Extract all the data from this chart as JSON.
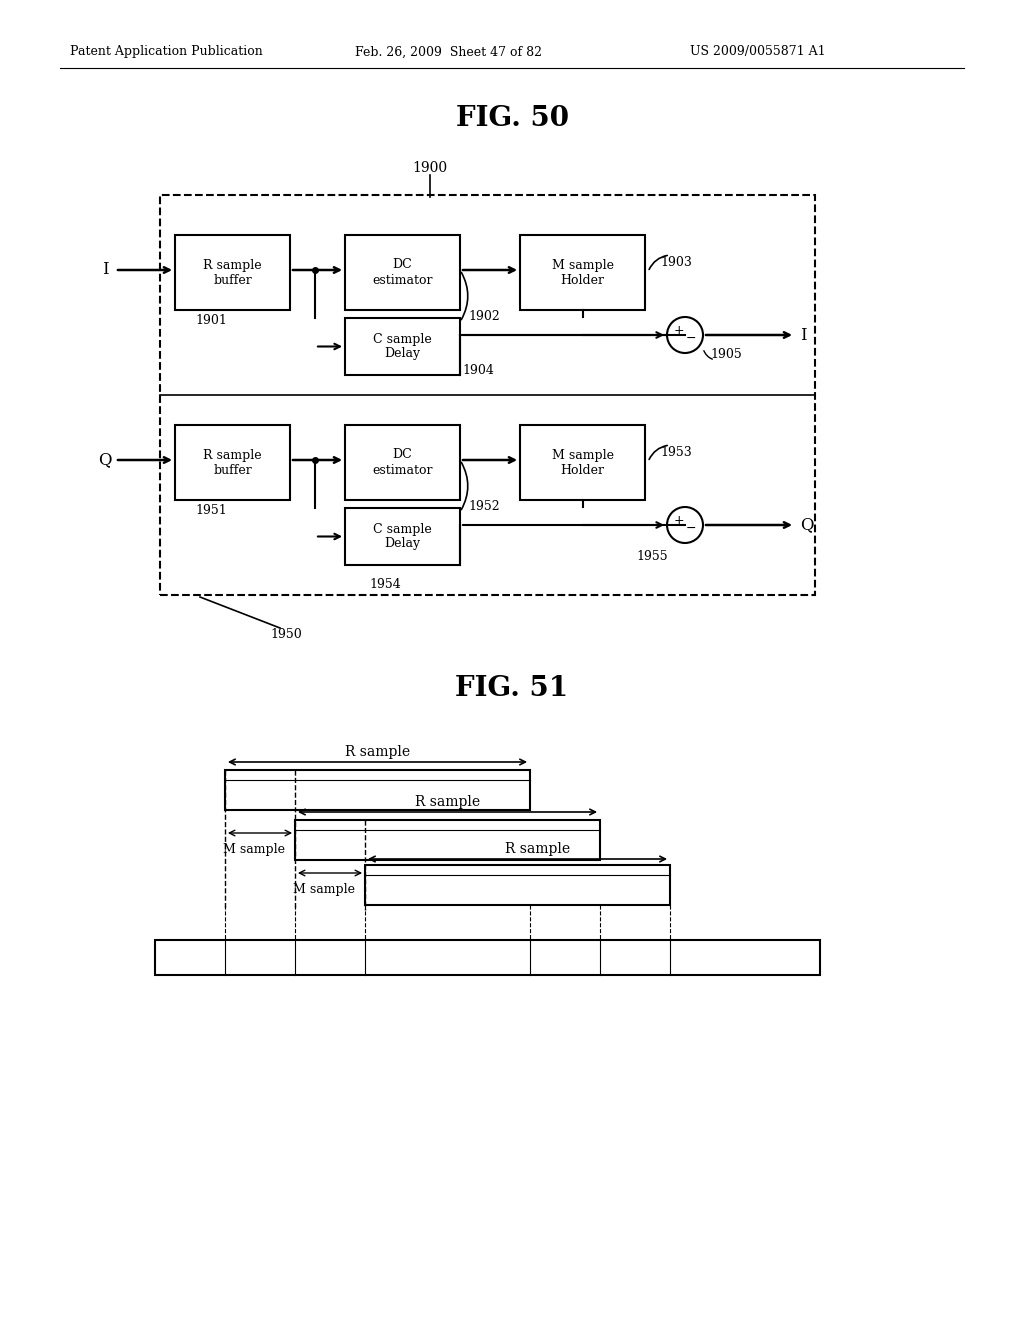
{
  "header_left": "Patent Application Publication",
  "header_mid": "Feb. 26, 2009  Sheet 47 of 82",
  "header_right": "US 2009/0055871 A1",
  "fig50_title": "FIG. 50",
  "fig51_title": "FIG. 51",
  "bg_color": "#ffffff",
  "line_color": "#000000"
}
